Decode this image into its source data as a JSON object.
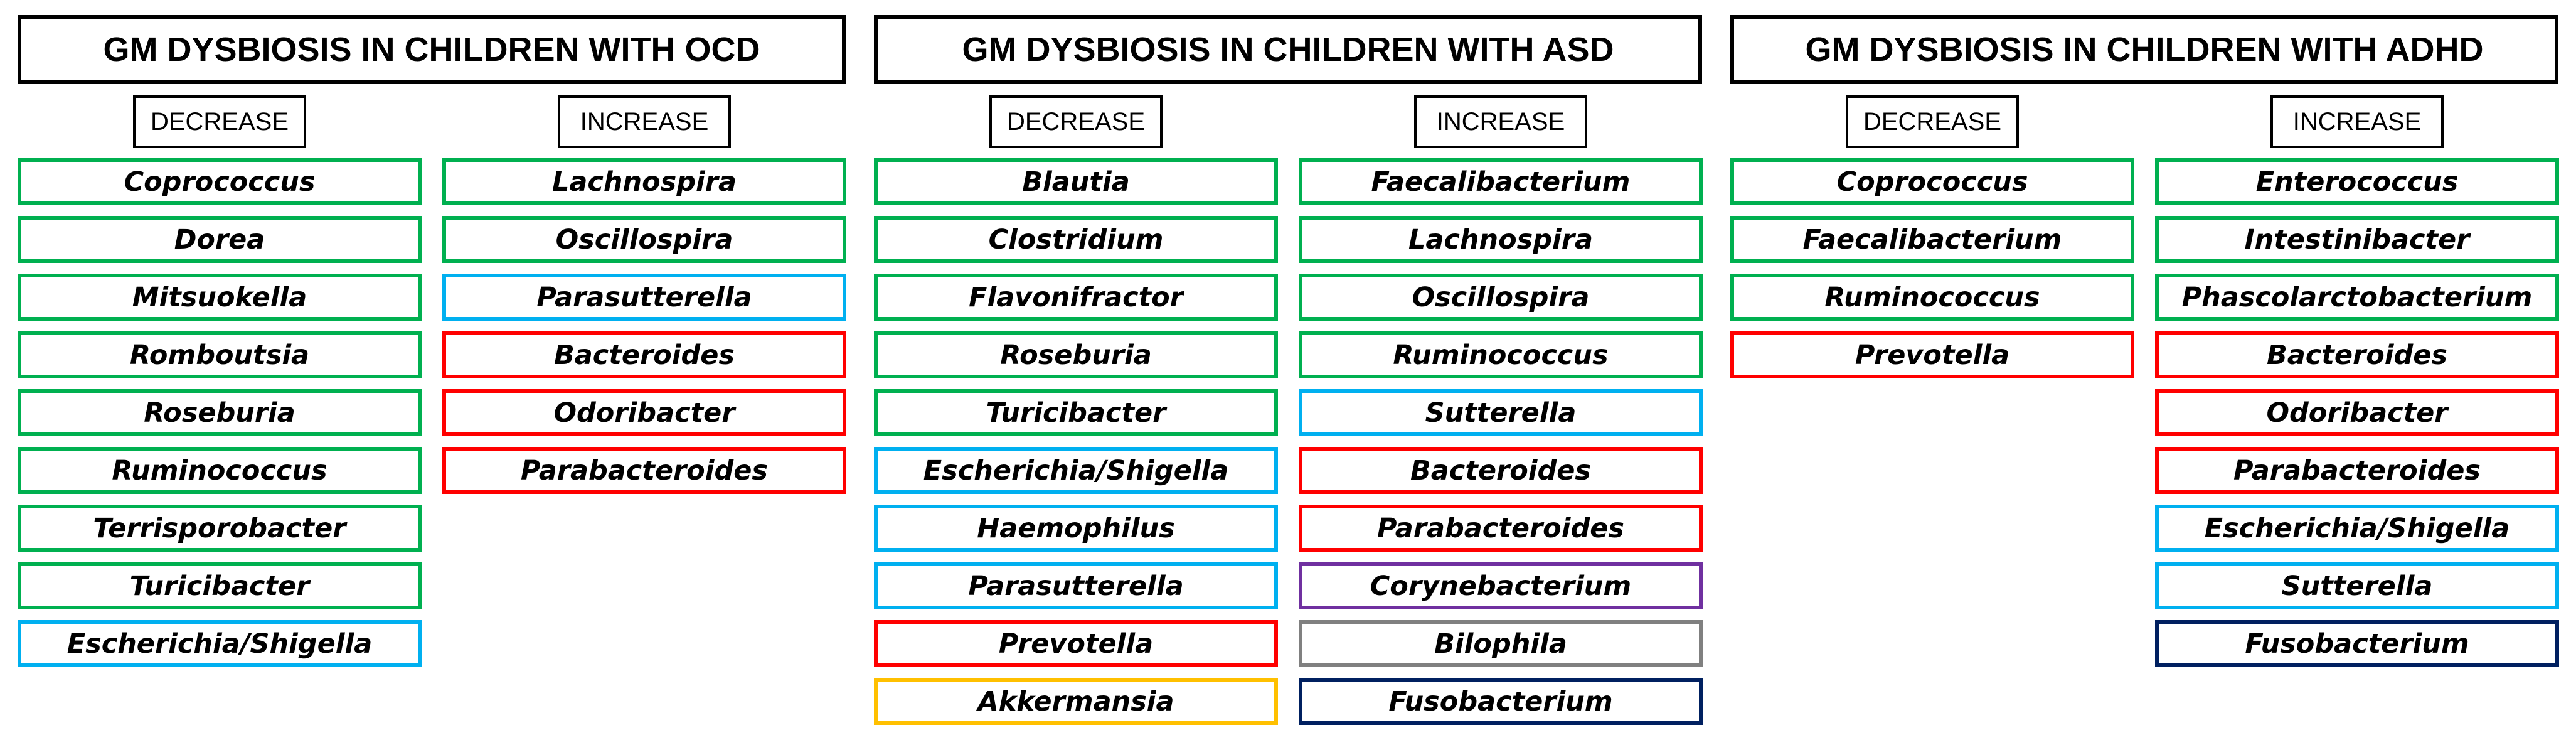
{
  "colors": {
    "green": "#00b050",
    "light_blue": "#00b0f0",
    "red": "#ff0000",
    "yellow": "#ffc000",
    "purple": "#7030a0",
    "gray": "#808080",
    "navy": "#002060"
  },
  "panels": [
    {
      "title": "GM DYSBIOSIS IN CHILDREN WITH OCD",
      "decrease_label": "DECREASE",
      "increase_label": "INCREASE",
      "decrease": [
        {
          "name": "Coprococcus",
          "color": "green"
        },
        {
          "name": "Dorea",
          "color": "green"
        },
        {
          "name": "Mitsuokella",
          "color": "green"
        },
        {
          "name": "Romboutsia",
          "color": "green"
        },
        {
          "name": "Roseburia",
          "color": "green"
        },
        {
          "name": "Ruminococcus",
          "color": "green"
        },
        {
          "name": "Terrisporobacter",
          "color": "green"
        },
        {
          "name": "Turicibacter",
          "color": "green"
        },
        {
          "name": "Escherichia/Shigella",
          "color": "light_blue"
        }
      ],
      "increase": [
        {
          "name": "Lachnospira",
          "color": "green"
        },
        {
          "name": "Oscillospira",
          "color": "green"
        },
        {
          "name": "Parasutterella",
          "color": "light_blue"
        },
        {
          "name": "Bacteroides",
          "color": "red"
        },
        {
          "name": "Odoribacter",
          "color": "red"
        },
        {
          "name": "Parabacteroides",
          "color": "red"
        }
      ]
    },
    {
      "title": "GM DYSBIOSIS IN CHILDREN WITH ASD",
      "decrease_label": "DECREASE",
      "increase_label": "INCREASE",
      "decrease": [
        {
          "name": "Blautia",
          "color": "green"
        },
        {
          "name": "Clostridium",
          "color": "green"
        },
        {
          "name": "Flavonifractor",
          "color": "green"
        },
        {
          "name": "Roseburia",
          "color": "green"
        },
        {
          "name": "Turicibacter",
          "color": "green"
        },
        {
          "name": "Escherichia/Shigella",
          "color": "light_blue"
        },
        {
          "name": "Haemophilus",
          "color": "light_blue"
        },
        {
          "name": "Parasutterella",
          "color": "light_blue"
        },
        {
          "name": "Prevotella",
          "color": "red"
        },
        {
          "name": "Akkermansia",
          "color": "yellow"
        }
      ],
      "increase": [
        {
          "name": "Faecalibacterium",
          "color": "green"
        },
        {
          "name": "Lachnospira",
          "color": "green"
        },
        {
          "name": "Oscillospira",
          "color": "green"
        },
        {
          "name": "Ruminococcus",
          "color": "green"
        },
        {
          "name": "Sutterella",
          "color": "light_blue"
        },
        {
          "name": "Bacteroides",
          "color": "red"
        },
        {
          "name": "Parabacteroides",
          "color": "red"
        },
        {
          "name": "Corynebacterium",
          "color": "purple"
        },
        {
          "name": "Bilophila",
          "color": "gray"
        },
        {
          "name": "Fusobacterium",
          "color": "navy"
        }
      ]
    },
    {
      "title": "GM DYSBIOSIS IN CHILDREN WITH ADHD",
      "decrease_label": "DECREASE",
      "increase_label": "INCREASE",
      "decrease": [
        {
          "name": "Coprococcus",
          "color": "green"
        },
        {
          "name": "Faecalibacterium",
          "color": "green"
        },
        {
          "name": "Ruminococcus",
          "color": "green"
        },
        {
          "name": "Prevotella",
          "color": "red"
        }
      ],
      "increase": [
        {
          "name": "Enterococcus",
          "color": "green"
        },
        {
          "name": "Intestinibacter",
          "color": "green"
        },
        {
          "name": "Phascolarctobacterium",
          "color": "green"
        },
        {
          "name": "Bacteroides",
          "color": "red"
        },
        {
          "name": "Odoribacter",
          "color": "red"
        },
        {
          "name": "Parabacteroides",
          "color": "red"
        },
        {
          "name": "Escherichia/Shigella",
          "color": "light_blue"
        },
        {
          "name": "Sutterella",
          "color": "light_blue"
        },
        {
          "name": "Fusobacterium",
          "color": "navy"
        }
      ]
    }
  ]
}
